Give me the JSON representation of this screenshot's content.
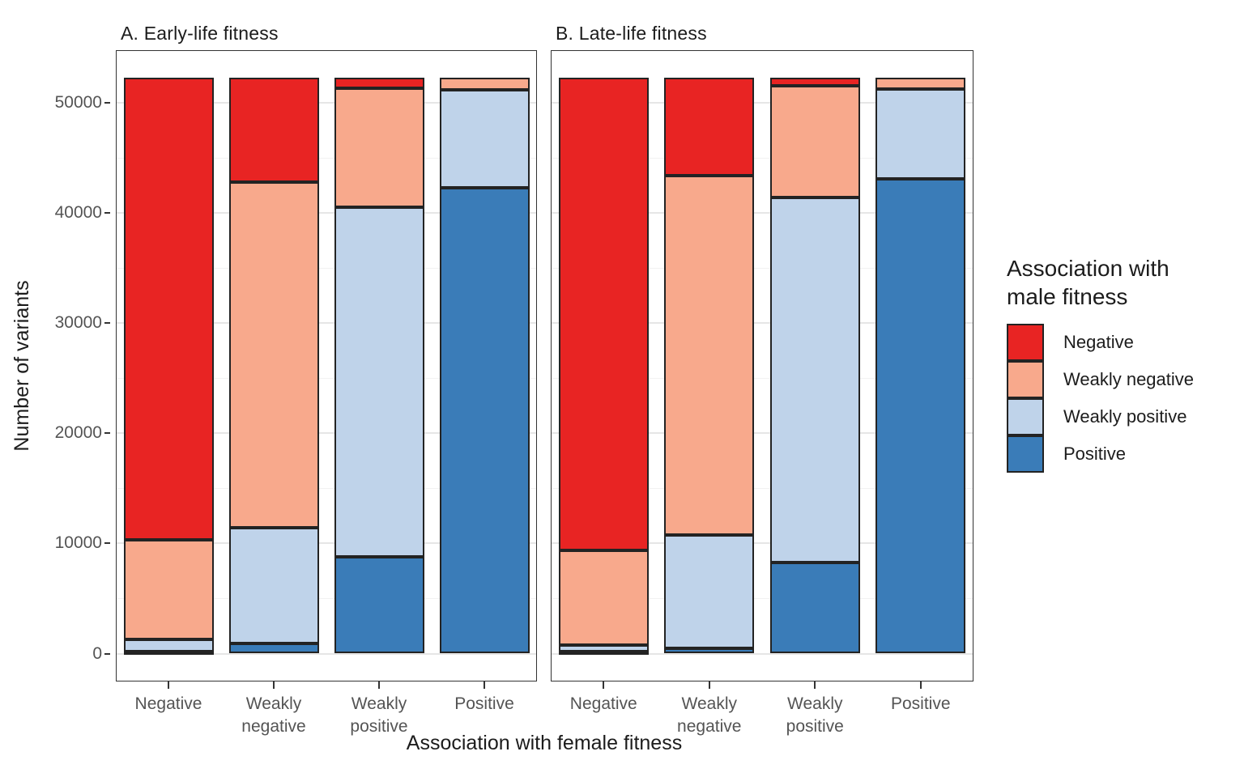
{
  "figure": {
    "background": "#ffffff"
  },
  "y_axis": {
    "title": "Number of variants",
    "tick_values": [
      0,
      10000,
      20000,
      30000,
      40000,
      50000
    ],
    "tick_labels": [
      "0",
      "10000",
      "20000",
      "30000",
      "40000",
      "50000"
    ],
    "minor_values": [
      5000,
      15000,
      25000,
      35000,
      45000
    ]
  },
  "x_axis": {
    "title": "Association with female fitness",
    "tick_labels": [
      "Negative",
      "Weakly\nnegative",
      "Weakly\npositive",
      "Positive"
    ]
  },
  "legend": {
    "title": "Association with\nmale fitness",
    "items": [
      {
        "label": "Negative",
        "color": "#e82423"
      },
      {
        "label": "Weakly negative",
        "color": "#f8a98c"
      },
      {
        "label": "Weakly positive",
        "color": "#bfd3ea"
      },
      {
        "label": "Positive",
        "color": "#3a7cb8"
      }
    ]
  },
  "chart_data": [
    {
      "type": "bar",
      "stacked": true,
      "stack_order": "top-to-bottom",
      "title": "A. Early-life fitness",
      "xlabel": "Association with female fitness",
      "ylabel": "Number of variants",
      "ylim": [
        0,
        52300
      ],
      "grid": "major-and-minor",
      "legend_position": "right",
      "categories": [
        "Negative",
        "Weakly negative",
        "Weakly positive",
        "Positive"
      ],
      "series": [
        {
          "name": "Negative",
          "color": "#e82423",
          "values": [
            42000,
            9500,
            950,
            0
          ]
        },
        {
          "name": "Weakly negative",
          "color": "#f8a98c",
          "values": [
            9000,
            31400,
            10800,
            1100
          ]
        },
        {
          "name": "Weakly positive",
          "color": "#bfd3ea",
          "values": [
            1100,
            10500,
            31750,
            8900
          ]
        },
        {
          "name": "Positive",
          "color": "#3a7cb8",
          "values": [
            200,
            900,
            8800,
            42300
          ]
        }
      ]
    },
    {
      "type": "bar",
      "stacked": true,
      "stack_order": "top-to-bottom",
      "title": "B. Late-life fitness",
      "xlabel": "Association with female fitness",
      "ylabel": "Number of variants",
      "ylim": [
        0,
        52300
      ],
      "grid": "major-and-minor",
      "legend_position": "right",
      "categories": [
        "Negative",
        "Weakly negative",
        "Weakly positive",
        "Positive"
      ],
      "series": [
        {
          "name": "Negative",
          "color": "#e82423",
          "values": [
            42900,
            8900,
            700,
            0
          ]
        },
        {
          "name": "Weakly negative",
          "color": "#f8a98c",
          "values": [
            8600,
            32600,
            10200,
            1000
          ]
        },
        {
          "name": "Weakly positive",
          "color": "#bfd3ea",
          "values": [
            600,
            10300,
            33100,
            8200
          ]
        },
        {
          "name": "Positive",
          "color": "#3a7cb8",
          "values": [
            200,
            500,
            8300,
            43100
          ]
        }
      ]
    }
  ]
}
